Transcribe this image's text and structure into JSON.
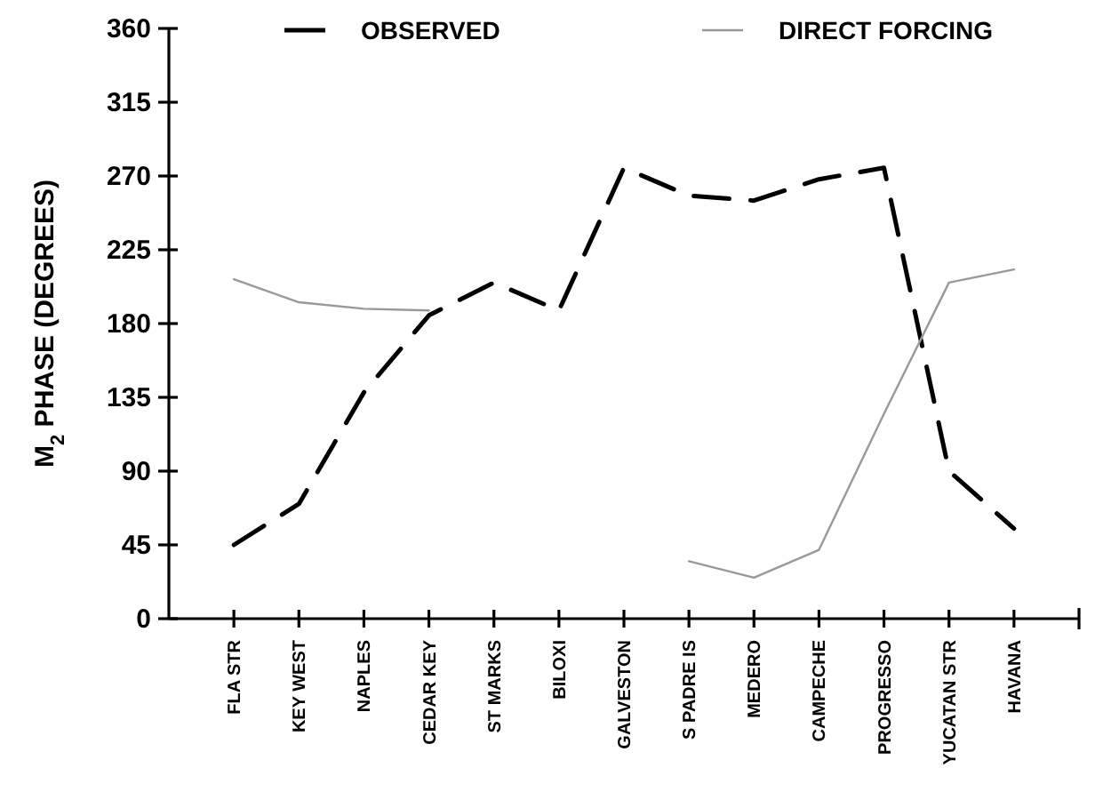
{
  "chart_data": {
    "type": "line",
    "ylabel": "M$_{2}$ PHASE (DEGREES)",
    "categories": [
      "FLA STR",
      "KEY WEST",
      "NAPLES",
      "CEDAR KEY",
      "ST MARKS",
      "BILOXI",
      "GALVESTON",
      "S PADRE IS",
      "MEDERO",
      "CAMPECHE",
      "PROGRESSO",
      "YUCATAN STR",
      "HAVANA"
    ],
    "series": [
      {
        "name": "OBSERVED",
        "color": "#000000",
        "line_style": "dashed",
        "values": [
          45,
          70,
          138,
          185,
          205,
          188,
          275,
          258,
          255,
          268,
          275,
          90,
          55
        ]
      },
      {
        "name": "DIRECT FORCING",
        "color": "#999999",
        "line_style": "solid",
        "values": [
          207,
          193,
          189,
          188,
          null,
          null,
          null,
          35,
          25,
          42,
          125,
          205,
          213
        ]
      }
    ],
    "ylim": [
      0,
      360
    ],
    "yticks": [
      0,
      45,
      90,
      135,
      180,
      225,
      270,
      315,
      360
    ],
    "grid": false,
    "legend": "top",
    "marker": "none"
  }
}
